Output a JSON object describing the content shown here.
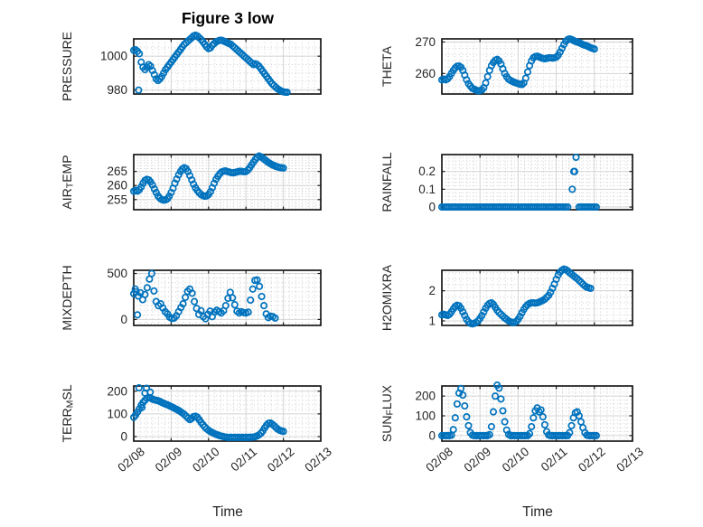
{
  "title": "Figure 3 low",
  "xlabel": "Time",
  "style": {
    "marker_color": "#0072BD",
    "axis_color": "#1a1a1a",
    "text_color": "#262626",
    "grid_major_color": "#d4d4d4",
    "grid_minor_color": "#cccccc",
    "background": "#ffffff"
  },
  "x_axis": {
    "lim": [
      0,
      5
    ],
    "ticks": [
      0,
      1,
      2,
      3,
      4,
      5
    ],
    "tick_labels": [
      "02/08",
      "02/09",
      "02/10",
      "02/11",
      "02/12",
      "02/13"
    ],
    "minor_per_unit": 6
  },
  "chart_data": [
    {
      "id": "pressure",
      "type": "scatter",
      "row": 0,
      "col": 0,
      "ylabel_parts": [
        {
          "t": "PRESSURE"
        }
      ],
      "ylim": [
        977.5,
        1010.3
      ],
      "yticks": [
        980,
        1000
      ],
      "ytick_labels": [
        "980",
        "1000"
      ],
      "y_minor_step": 5,
      "x_start": 0,
      "x_step": 0.05,
      "values": [
        1003.5,
        1003.8,
        1002.9,
        1001.5,
        996.5,
        993.5,
        992.0,
        993.5,
        995.0,
        994.0,
        991.5,
        989.0,
        986.5,
        985.5,
        986.5,
        988.0,
        990.0,
        992.0,
        993.5,
        995.0,
        996.5,
        998.0,
        999.5,
        1001.0,
        1002.5,
        1004.0,
        1005.5,
        1007.0,
        1008.0,
        1009.0,
        1010.0,
        1011.0,
        1012.0,
        1012.5,
        1012.0,
        1011.0,
        1010.0,
        1008.5,
        1007.0,
        1005.5,
        1004.5,
        1005.0,
        1006.5,
        1007.5,
        1008.5,
        1009.0,
        1009.5,
        1009.5,
        1009.0,
        1008.5,
        1008.0,
        1007.5,
        1007.0,
        1006.0,
        1005.0,
        1004.0,
        1003.0,
        1002.0,
        1001.0,
        1000.0,
        999.0,
        998.0,
        997.0,
        996.0,
        995.0,
        995.5,
        995.0,
        994.0,
        992.5,
        991.0,
        989.5,
        988.0,
        986.5,
        985.0,
        983.5,
        982.5,
        981.5,
        980.5,
        979.8,
        979.2,
        978.8,
        978.6,
        978.5
      ],
      "extra_points": [
        [
          0.13,
          979.8
        ]
      ]
    },
    {
      "id": "theta",
      "type": "scatter",
      "row": 0,
      "col": 1,
      "ylabel_parts": [
        {
          "t": "THETA"
        }
      ],
      "ylim": [
        253.5,
        271.0
      ],
      "yticks": [
        260,
        270
      ],
      "ytick_labels": [
        "260",
        "270"
      ],
      "y_minor_step": 2,
      "x_start": 0,
      "x_step": 0.05,
      "values": [
        258.0,
        258.2,
        258.0,
        258.3,
        259.0,
        260.0,
        261.0,
        261.8,
        262.3,
        262.4,
        262.0,
        261.0,
        259.5,
        258.0,
        256.8,
        256.0,
        255.3,
        255.0,
        254.7,
        254.5,
        254.6,
        254.8,
        255.5,
        257.0,
        259.0,
        261.0,
        262.5,
        263.5,
        264.2,
        264.5,
        264.0,
        263.0,
        261.5,
        260.0,
        259.0,
        258.2,
        257.8,
        257.5,
        257.2,
        257.0,
        256.8,
        256.6,
        256.5,
        257.0,
        258.5,
        260.5,
        262.5,
        264.0,
        265.0,
        265.4,
        265.5,
        265.3,
        265.0,
        264.8,
        264.7,
        264.8,
        265.0,
        265.0,
        264.9,
        265.0,
        265.2,
        265.8,
        266.8,
        268.0,
        269.2,
        270.2,
        270.8,
        271.0,
        270.8,
        270.5,
        270.2,
        270.0,
        269.8,
        269.5,
        269.2,
        269.0,
        268.8,
        268.5,
        268.2,
        268.0,
        267.8
      ]
    },
    {
      "id": "air-temp",
      "type": "scatter",
      "row": 1,
      "col": 0,
      "ylabel_parts": [
        {
          "t": "AIR"
        },
        {
          "t": "T",
          "sub": true
        },
        {
          "t": "EMP"
        }
      ],
      "ylim": [
        251.4,
        271.0
      ],
      "yticks": [
        255,
        260,
        265
      ],
      "ytick_labels": [
        "255",
        "260",
        "265"
      ],
      "y_minor_step": 1,
      "x_start": 0,
      "x_step": 0.05,
      "values": [
        258.0,
        258.3,
        258.0,
        258.5,
        259.5,
        260.8,
        261.8,
        262.2,
        262.0,
        261.3,
        260.2,
        258.8,
        257.5,
        256.3,
        255.5,
        255.0,
        254.8,
        254.9,
        255.3,
        256.2,
        257.5,
        259.0,
        260.8,
        262.3,
        263.8,
        265.0,
        265.9,
        266.3,
        266.0,
        265.0,
        263.5,
        262.0,
        260.5,
        259.2,
        258.2,
        257.4,
        256.8,
        256.4,
        256.2,
        256.3,
        256.8,
        257.8,
        259.2,
        260.8,
        262.2,
        263.3,
        264.2,
        264.8,
        265.1,
        265.2,
        265.0,
        264.8,
        264.6,
        264.5,
        264.6,
        264.8,
        265.0,
        265.1,
        265.0,
        264.9,
        265.0,
        265.5,
        266.3,
        267.3,
        268.3,
        269.3,
        270.0,
        270.5,
        270.2,
        269.7,
        269.2,
        268.7,
        268.2,
        267.8,
        267.4,
        267.1,
        266.8,
        266.6,
        266.4,
        266.3,
        266.2
      ]
    },
    {
      "id": "rainfall",
      "type": "scatter",
      "row": 1,
      "col": 1,
      "ylabel_parts": [
        {
          "t": "RAINFALL"
        }
      ],
      "ylim": [
        -0.015,
        0.295
      ],
      "yticks": [
        0,
        0.1,
        0.2
      ],
      "ytick_labels": [
        "0",
        "0.1",
        "0.2"
      ],
      "y_minor_step": 0.02,
      "x_start": 0,
      "x_step": 0.05,
      "values": [
        0,
        0,
        0,
        0,
        0,
        0,
        0,
        0,
        0,
        0,
        0,
        0,
        0,
        0,
        0,
        0,
        0,
        0,
        0,
        0,
        0,
        0,
        0,
        0,
        0,
        0,
        0,
        0,
        0,
        0,
        0,
        0,
        0,
        0,
        0,
        0,
        0,
        0,
        0,
        0,
        0,
        0,
        0,
        0,
        0,
        0,
        0,
        0,
        0,
        0,
        0,
        0,
        0,
        0,
        0,
        0,
        0,
        0,
        0,
        0,
        0,
        0,
        0,
        0,
        0,
        0,
        0,
        null,
        null,
        null,
        null,
        null,
        0,
        0,
        0,
        0,
        0,
        0,
        0,
        0,
        0,
        0
      ],
      "extra_points": [
        [
          3.42,
          0.1
        ],
        [
          3.46,
          0.2
        ],
        [
          3.48,
          0.2
        ],
        [
          3.52,
          0.28
        ]
      ]
    },
    {
      "id": "mixdepth",
      "type": "scatter",
      "row": 2,
      "col": 0,
      "ylabel_parts": [
        {
          "t": "MIXDEPTH"
        }
      ],
      "ylim": [
        -65,
        535
      ],
      "yticks": [
        0,
        500
      ],
      "ytick_labels": [
        "0",
        "500"
      ],
      "y_minor_step": 50,
      "x_start": 0,
      "x_step": 0.06,
      "values": [
        280,
        300,
        255,
        290,
        215,
        270,
        345,
        440,
        500,
        310,
        195,
        150,
        170,
        125,
        85,
        60,
        25,
        10,
        15,
        40,
        85,
        130,
        170,
        240,
        305,
        330,
        285,
        195,
        120,
        55,
        95,
        30,
        8,
        55,
        90,
        30,
        80,
        100,
        85,
        70,
        95,
        150,
        230,
        295,
        235,
        160,
        90,
        70,
        85,
        75,
        70,
        80,
        210,
        330,
        425,
        430,
        360,
        250,
        150,
        60,
        20,
        35,
        30,
        15
      ],
      "extra_points": [
        [
          0.1,
          50
        ],
        [
          0.04,
          330
        ]
      ]
    },
    {
      "id": "h2omixra",
      "type": "scatter",
      "row": 2,
      "col": 1,
      "ylabel_parts": [
        {
          "t": "H2OMIXRA"
        }
      ],
      "ylim": [
        0.85,
        2.68
      ],
      "yticks": [
        1,
        2
      ],
      "ytick_labels": [
        "1",
        "2"
      ],
      "y_minor_step": 0.2,
      "x_start": 0,
      "x_step": 0.05,
      "values": [
        1.2,
        1.22,
        1.2,
        1.18,
        1.22,
        1.3,
        1.4,
        1.48,
        1.52,
        1.5,
        1.42,
        1.3,
        1.18,
        1.05,
        0.97,
        0.92,
        0.9,
        0.92,
        0.95,
        1.0,
        1.08,
        1.18,
        1.3,
        1.42,
        1.52,
        1.58,
        1.6,
        1.55,
        1.45,
        1.35,
        1.28,
        1.22,
        1.16,
        1.1,
        1.05,
        1.0,
        0.97,
        0.95,
        0.95,
        0.98,
        1.05,
        1.15,
        1.27,
        1.38,
        1.47,
        1.54,
        1.58,
        1.6,
        1.6,
        1.59,
        1.6,
        1.62,
        1.65,
        1.68,
        1.72,
        1.78,
        1.85,
        1.95,
        2.08,
        2.22,
        2.38,
        2.52,
        2.62,
        2.68,
        2.72,
        2.7,
        2.66,
        2.6,
        2.55,
        2.5,
        2.45,
        2.4,
        2.34,
        2.28,
        2.22,
        2.16,
        2.12,
        2.1,
        2.08
      ]
    },
    {
      "id": "terr-msl",
      "type": "scatter",
      "row": 3,
      "col": 0,
      "ylabel_parts": [
        {
          "t": "TERR"
        },
        {
          "t": "M",
          "sub": true
        },
        {
          "t": "SL"
        }
      ],
      "ylim": [
        -20,
        223
      ],
      "yticks": [
        0,
        100,
        200
      ],
      "ytick_labels": [
        "0",
        "100",
        "200"
      ],
      "y_minor_step": 20,
      "x_start": 0,
      "x_step": 0.05,
      "values": [
        85,
        95,
        108,
        122,
        138,
        150,
        160,
        168,
        172,
        170,
        165,
        162,
        160,
        158,
        155,
        150,
        147,
        143,
        140,
        136,
        132,
        128,
        124,
        120,
        115,
        110,
        104,
        98,
        90,
        82,
        75,
        80,
        88,
        90,
        85,
        75,
        63,
        52,
        42,
        34,
        28,
        22,
        18,
        14,
        10,
        7,
        4,
        2,
        0,
        -2,
        -3,
        -4,
        -3,
        -4,
        -3,
        -4,
        -3,
        -4,
        -3,
        -4,
        -3,
        -4,
        -3,
        -3,
        -2,
        0,
        3,
        8,
        15,
        25,
        38,
        50,
        58,
        60,
        55,
        48,
        40,
        33,
        28,
        25,
        23
      ],
      "extra_points": [
        [
          0.14,
          215
        ],
        [
          0.34,
          213
        ],
        [
          0.22,
          128
        ],
        [
          0.3,
          192
        ],
        [
          0.44,
          196
        ]
      ]
    },
    {
      "id": "sun-flux",
      "type": "scatter",
      "row": 3,
      "col": 1,
      "ylabel_parts": [
        {
          "t": "SUN"
        },
        {
          "t": "F",
          "sub": true
        },
        {
          "t": "LUX"
        }
      ],
      "ylim": [
        -28,
        251
      ],
      "yticks": [
        0,
        100,
        200
      ],
      "ytick_labels": [
        "0",
        "100",
        "200"
      ],
      "y_minor_step": 20,
      "x_start": 0,
      "x_step": 0.05,
      "values": [
        0,
        0,
        0,
        0,
        0,
        2,
        30,
        90,
        160,
        215,
        238,
        205,
        150,
        95,
        50,
        15,
        2,
        0,
        0,
        0,
        0,
        0,
        0,
        0,
        0,
        5,
        45,
        120,
        200,
        255,
        240,
        185,
        125,
        70,
        28,
        6,
        0,
        0,
        0,
        0,
        0,
        0,
        0,
        0,
        0,
        0,
        10,
        45,
        90,
        125,
        140,
        120,
        130,
        95,
        55,
        20,
        3,
        0,
        0,
        0,
        0,
        0,
        0,
        0,
        0,
        0,
        0,
        15,
        50,
        90,
        115,
        120,
        100,
        70,
        40,
        15,
        2,
        0,
        0,
        0,
        0,
        0
      ]
    }
  ]
}
